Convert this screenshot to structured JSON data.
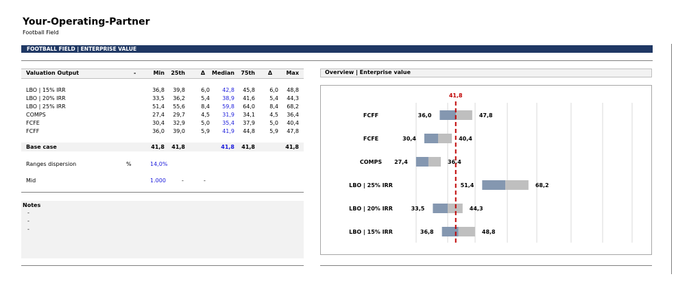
{
  "header": {
    "title": "Your-Operating-Partner",
    "subtitle": "Football Field",
    "banner": "FOOTBALL FIELD | ENTERPRISE VALUE"
  },
  "valuation_table": {
    "columns": [
      "Valuation Output",
      "-",
      "Min",
      "25th",
      "Δ",
      "Median",
      "75th",
      "Δ",
      "Max"
    ],
    "rows": [
      {
        "label": "LBO | 15% IRR",
        "min": "36,8",
        "p25": "39,8",
        "d1": "6,0",
        "median": "42,8",
        "p75": "45,8",
        "d2": "6,0",
        "max": "48,8"
      },
      {
        "label": "LBO | 20% IRR",
        "min": "33,5",
        "p25": "36,2",
        "d1": "5,4",
        "median": "38,9",
        "p75": "41,6",
        "d2": "5,4",
        "max": "44,3"
      },
      {
        "label": "LBO | 25% IRR",
        "min": "51,4",
        "p25": "55,6",
        "d1": "8,4",
        "median": "59,8",
        "p75": "64,0",
        "d2": "8,4",
        "max": "68,2"
      },
      {
        "label": "COMPS",
        "min": "27,4",
        "p25": "29,7",
        "d1": "4,5",
        "median": "31,9",
        "p75": "34,1",
        "d2": "4,5",
        "max": "36,4"
      },
      {
        "label": "FCFE",
        "min": "30,4",
        "p25": "32,9",
        "d1": "5,0",
        "median": "35,4",
        "p75": "37,9",
        "d2": "5,0",
        "max": "40,4"
      },
      {
        "label": "FCFF",
        "min": "36,0",
        "p25": "39,0",
        "d1": "5,9",
        "median": "41,9",
        "p75": "44,8",
        "d2": "5,9",
        "max": "47,8"
      }
    ],
    "base_case": {
      "label": "Base case",
      "min": "41,8",
      "p25": "41,8",
      "median": "41,8",
      "p75": "41,8",
      "max": "41,8"
    },
    "dispersion": {
      "label": "Ranges dispersion",
      "unit": "%",
      "value": "14,0%"
    },
    "mid": {
      "label": "Mid",
      "value": "1.000",
      "dash1": "-",
      "dash2": "-"
    }
  },
  "notes": {
    "title": "Notes",
    "lines": [
      "-",
      "-",
      "-"
    ]
  },
  "overview": {
    "title": "Overview | Enterprise value"
  },
  "chart_data": {
    "type": "bar",
    "title": "Overview | Enterprise value",
    "reference_line": {
      "value": 41.8,
      "label": "41,8",
      "color": "#c00000"
    },
    "xlim": [
      15,
      82
    ],
    "categories": [
      "FCFF",
      "FCFE",
      "COMPS",
      "LBO | 25% IRR",
      "LBO | 20% IRR",
      "LBO | 15% IRR"
    ],
    "series": [
      {
        "name": "Min",
        "values": [
          36.0,
          30.4,
          27.4,
          51.4,
          33.5,
          36.8
        ],
        "labels": [
          "36,0",
          "30,4",
          "27,4",
          "51,4",
          "33,5",
          "36,8"
        ]
      },
      {
        "name": "Median",
        "values": [
          41.9,
          35.4,
          31.9,
          59.8,
          38.9,
          42.8
        ]
      },
      {
        "name": "Max",
        "values": [
          47.8,
          40.4,
          36.4,
          68.2,
          44.3,
          48.8
        ],
        "labels": [
          "47,8",
          "40,4",
          "36,4",
          "68,2",
          "44,3",
          "48,8"
        ]
      }
    ],
    "colors": {
      "low_segment": "#8497b0",
      "high_segment": "#bfbfbf",
      "grid": "#d9d9d9"
    },
    "grid": true
  }
}
